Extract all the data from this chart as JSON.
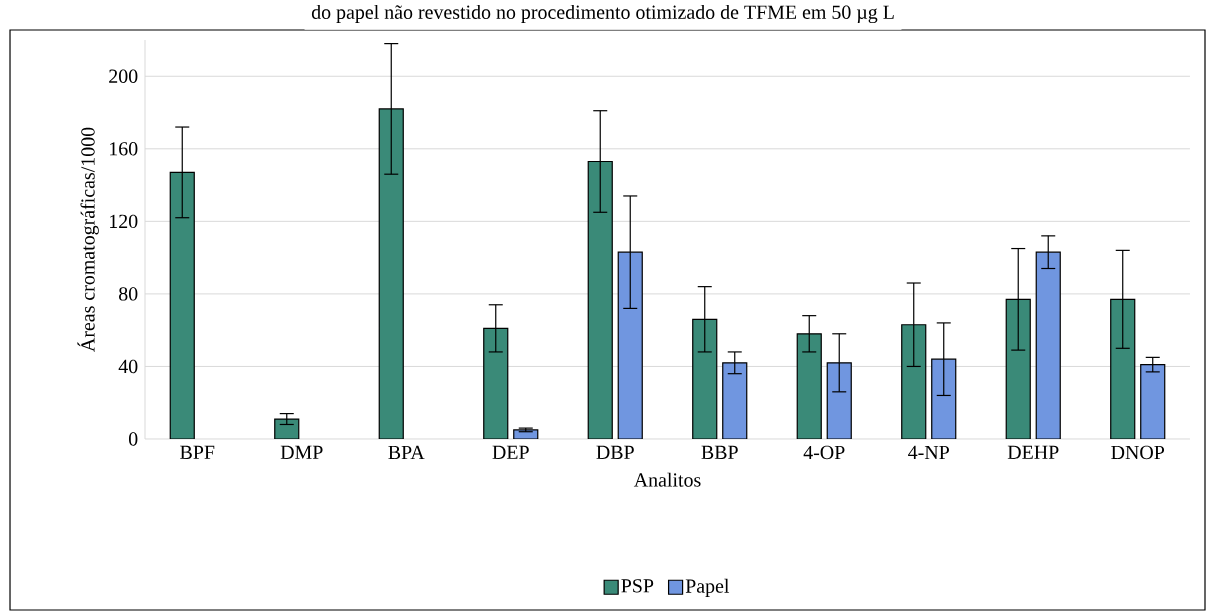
{
  "chart_data": {
    "type": "bar",
    "title": "do papel não revestido no procedimento otimizado de TFME em 50 µg L",
    "xlabel": "Analitos",
    "ylabel": "Áreas cromatográficas/1000",
    "categories": [
      "BPF",
      "DMP",
      "BPA",
      "DEP",
      "DBP",
      "BBP",
      "4-OP",
      "4-NP",
      "DEHP",
      "DNOP"
    ],
    "series": [
      {
        "name": "PSP",
        "color": "#3a8a78",
        "values": [
          147,
          11,
          182,
          61,
          153,
          66,
          58,
          63,
          77,
          77
        ],
        "errors": [
          25,
          3,
          36,
          13,
          28,
          18,
          10,
          23,
          28,
          27
        ]
      },
      {
        "name": "Papel",
        "color": "#7096e0",
        "values": [
          null,
          null,
          null,
          5,
          103,
          42,
          42,
          44,
          103,
          41
        ],
        "errors": [
          null,
          null,
          null,
          1,
          31,
          6,
          16,
          20,
          9,
          4
        ]
      }
    ],
    "ylim": [
      0,
      220
    ],
    "yticks": [
      0,
      40,
      80,
      120,
      160,
      200
    ],
    "grid": "y",
    "legend": "bottom"
  }
}
